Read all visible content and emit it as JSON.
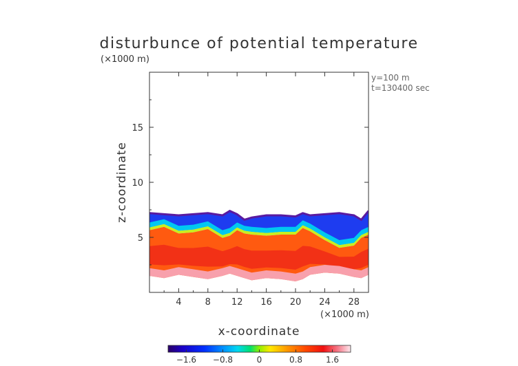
{
  "chart_data": {
    "type": "heatmap",
    "title": "disturbunce of potential temperature",
    "xlabel": "x-coordinate",
    "ylabel": "z-coordinate",
    "x_unit": "(×1000 m)",
    "y_unit": "(×1000 m)",
    "annotations": [
      "y=100 m",
      "t=130400 sec"
    ],
    "xlim": [
      0,
      30
    ],
    "ylim": [
      0,
      20
    ],
    "x_ticks": [
      4,
      8,
      12,
      16,
      20,
      24,
      28
    ],
    "y_ticks": [
      5,
      10,
      15
    ],
    "colorbar": {
      "ticks": [
        -1.6,
        -0.8,
        0,
        0.8,
        1.6
      ],
      "tick_labels": [
        "−1.6",
        "−0.8",
        "0",
        "0.8",
        "1.6"
      ],
      "range": [
        -2.0,
        2.0
      ]
    },
    "layers": {
      "x": [
        0,
        2,
        4,
        6,
        8,
        10,
        11,
        12,
        13,
        14,
        16,
        18,
        20,
        21,
        22,
        24,
        26,
        28,
        29,
        30
      ],
      "top_of_anomaly_z": [
        7.2,
        7.1,
        7.0,
        7.1,
        7.2,
        7.0,
        7.4,
        7.1,
        6.6,
        6.8,
        7.0,
        7.0,
        6.9,
        7.2,
        7.0,
        7.1,
        7.2,
        7.0,
        6.6,
        7.4
      ],
      "cold_to_warm_transition_z": [
        5.9,
        6.2,
        5.6,
        5.7,
        6.0,
        5.2,
        5.4,
        5.9,
        5.6,
        5.5,
        5.4,
        5.5,
        5.5,
        6.1,
        5.8,
        5.0,
        4.3,
        4.5,
        5.2,
        5.5
      ],
      "bottom_of_anomaly_z": [
        1.5,
        1.3,
        1.6,
        1.4,
        1.2,
        1.5,
        1.7,
        1.5,
        1.3,
        1.1,
        1.3,
        1.2,
        1.0,
        1.2,
        1.6,
        1.8,
        1.7,
        1.4,
        1.3,
        1.6
      ],
      "value_near_top": -1.8,
      "value_at_transition": 0.0,
      "value_warm_core": 1.6,
      "value_near_bottom": 2.0
    }
  }
}
